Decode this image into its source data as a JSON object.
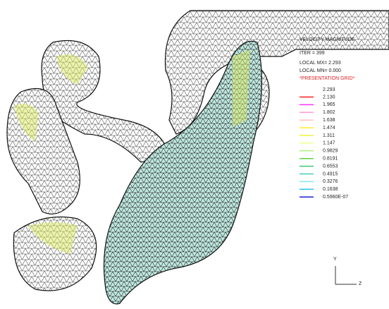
{
  "header": {
    "lines": [
      "VELOCITY MAGNITUDE",
      "ITER =    399",
      "LOCAL MX=  2.293",
      "LOCAL MN=  0.000"
    ],
    "grid_label": "*PRESENTATION GRID*"
  },
  "legend": {
    "top": "2.293",
    "entries": [
      {
        "label": "2.130",
        "color": "#ff2020"
      },
      {
        "label": "1.965",
        "color": "#ff30ff"
      },
      {
        "label": "1.802",
        "color": "#ff9ad8"
      },
      {
        "label": "1.638",
        "color": "#ffc0c0"
      },
      {
        "label": "1.474",
        "color": "#ffee30"
      },
      {
        "label": "1.311",
        "color": "#f0f040"
      },
      {
        "label": "1.147",
        "color": "#f0ff90"
      },
      {
        "label": "0.9829",
        "color": "#b0f080"
      },
      {
        "label": "0.8191",
        "color": "#60d040"
      },
      {
        "label": "0.6553",
        "color": "#40c870"
      },
      {
        "label": "0.4915",
        "color": "#40d0c0"
      },
      {
        "label": "0.3276",
        "color": "#80e8f0"
      },
      {
        "label": "0.1638",
        "color": "#30c0f0"
      },
      {
        "label": "0.5960E-07",
        "color": "#2020d0"
      }
    ]
  },
  "axes": {
    "y": "Y",
    "z": "Z"
  }
}
